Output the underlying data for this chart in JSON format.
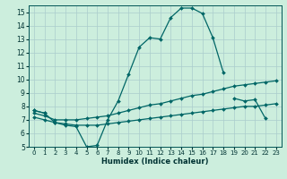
{
  "title": "",
  "xlabel": "Humidex (Indice chaleur)",
  "background_color": "#cceedd",
  "grid_color": "#aacccc",
  "line_color": "#006666",
  "xlim": [
    -0.5,
    23.5
  ],
  "ylim": [
    5,
    15.5
  ],
  "xticks": [
    0,
    1,
    2,
    3,
    4,
    5,
    6,
    7,
    8,
    9,
    10,
    11,
    12,
    13,
    14,
    15,
    16,
    17,
    18,
    19,
    20,
    21,
    22,
    23
  ],
  "yticks": [
    5,
    6,
    7,
    8,
    9,
    10,
    11,
    12,
    13,
    14,
    15
  ],
  "curve1_y": [
    7.7,
    7.5,
    6.8,
    6.6,
    6.5,
    5.0,
    5.1,
    7.0,
    8.4,
    10.4,
    12.4,
    13.1,
    13.0,
    14.6,
    15.3,
    15.3,
    14.9,
    13.1,
    10.5,
    null,
    null,
    null,
    null,
    null
  ],
  "curve2_y": [
    7.7,
    7.5,
    null,
    null,
    null,
    null,
    null,
    null,
    null,
    null,
    null,
    null,
    null,
    null,
    null,
    null,
    null,
    null,
    null,
    8.6,
    8.4,
    8.5,
    7.1,
    null
  ],
  "curve3_y": [
    7.5,
    7.3,
    7.0,
    7.0,
    7.0,
    7.1,
    7.2,
    7.3,
    7.5,
    7.7,
    7.9,
    8.1,
    8.2,
    8.4,
    8.6,
    8.8,
    8.9,
    9.1,
    9.3,
    9.5,
    9.6,
    9.7,
    9.8,
    9.9
  ],
  "curve4_y": [
    7.2,
    7.0,
    6.8,
    6.7,
    6.6,
    6.6,
    6.6,
    6.7,
    6.8,
    6.9,
    7.0,
    7.1,
    7.2,
    7.3,
    7.4,
    7.5,
    7.6,
    7.7,
    7.8,
    7.9,
    8.0,
    8.0,
    8.1,
    8.2
  ]
}
